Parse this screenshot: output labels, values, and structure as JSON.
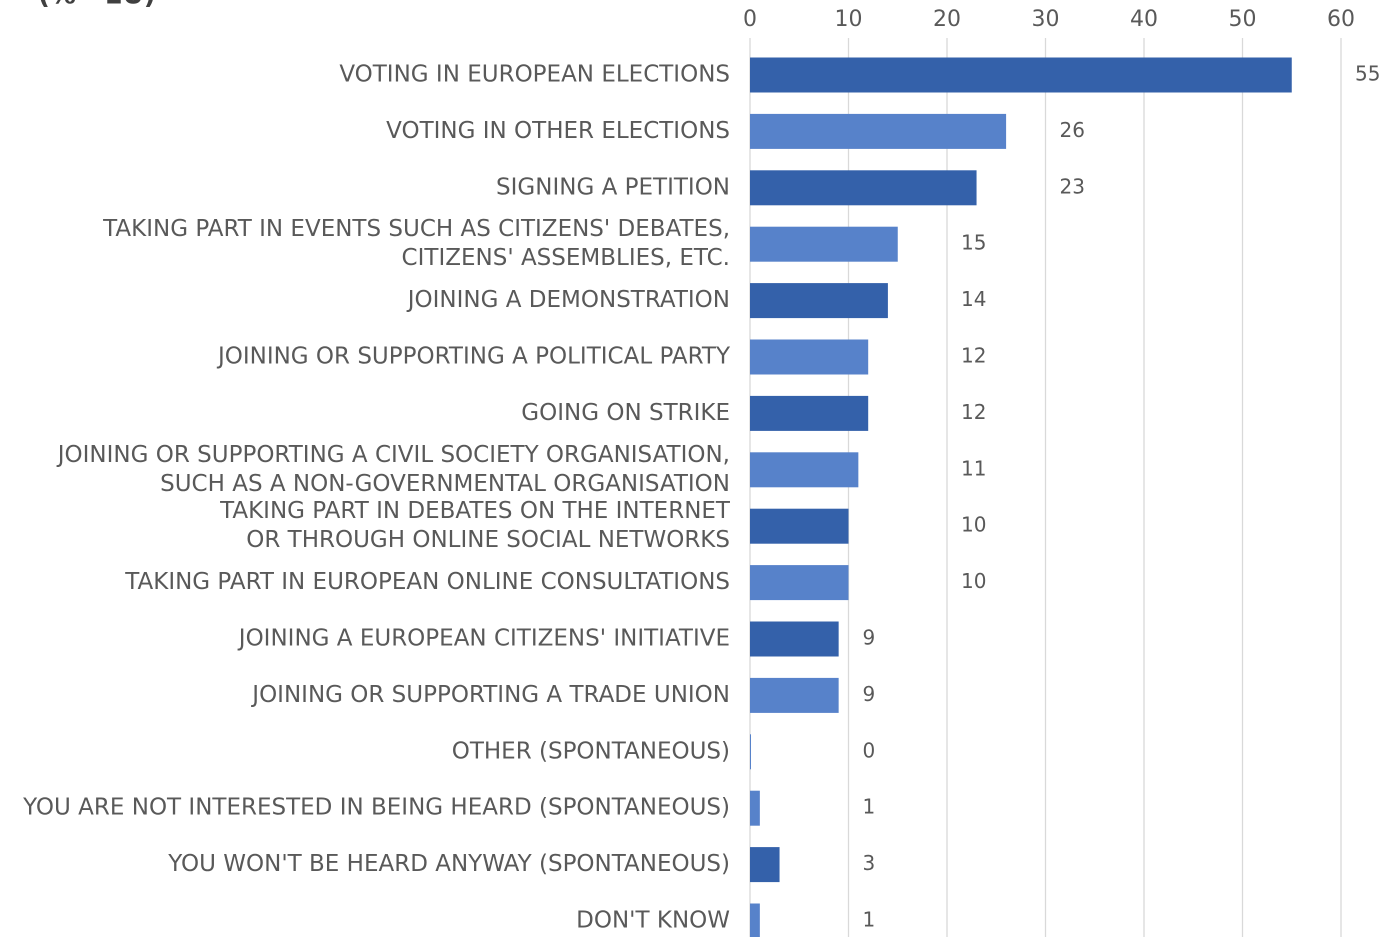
{
  "chart_data": {
    "type": "hbar",
    "subtitle": "(% - EU)",
    "categories": [
      [
        "VOTING IN EUROPEAN ELECTIONS"
      ],
      [
        "VOTING IN OTHER ELECTIONS"
      ],
      [
        "SIGNING A PETITION"
      ],
      [
        "TAKING PART IN EVENTS SUCH AS CITIZENS' DEBATES,",
        "CITIZENS' ASSEMBLIES, ETC."
      ],
      [
        "JOINING A DEMONSTRATION"
      ],
      [
        "JOINING OR SUPPORTING A POLITICAL PARTY"
      ],
      [
        "GOING ON STRIKE"
      ],
      [
        "JOINING OR SUPPORTING A CIVIL SOCIETY ORGANISATION,",
        "SUCH AS A NON-GOVERNMENTAL ORGANISATION"
      ],
      [
        "TAKING PART IN DEBATES ON THE INTERNET",
        "OR THROUGH ONLINE SOCIAL NETWORKS"
      ],
      [
        "TAKING PART IN EUROPEAN ONLINE CONSULTATIONS"
      ],
      [
        "JOINING A EUROPEAN CITIZENS' INITIATIVE"
      ],
      [
        "JOINING OR SUPPORTING A TRADE UNION"
      ],
      [
        "OTHER (SPONTANEOUS)"
      ],
      [
        "YOU ARE NOT INTERESTED IN BEING HEARD (SPONTANEOUS)"
      ],
      [
        "YOU WON'T BE HEARD ANYWAY (SPONTANEOUS)"
      ],
      [
        "DON'T KNOW"
      ]
    ],
    "values": [
      55,
      26,
      23,
      15,
      14,
      12,
      12,
      11,
      10,
      10,
      9,
      9,
      0,
      1,
      3,
      1
    ],
    "colors": [
      "#3461aa",
      "#5782ca",
      "#3461aa",
      "#5782ca",
      "#3461aa",
      "#5782ca",
      "#3461aa",
      "#5782ca",
      "#3461aa",
      "#5782ca",
      "#3461aa",
      "#5782ca",
      "#5782ca",
      "#5782ca",
      "#3461aa",
      "#5782ca"
    ],
    "xlim": [
      0,
      60
    ],
    "xticks": [
      0,
      10,
      20,
      30,
      40,
      50,
      60
    ],
    "grid": true
  }
}
